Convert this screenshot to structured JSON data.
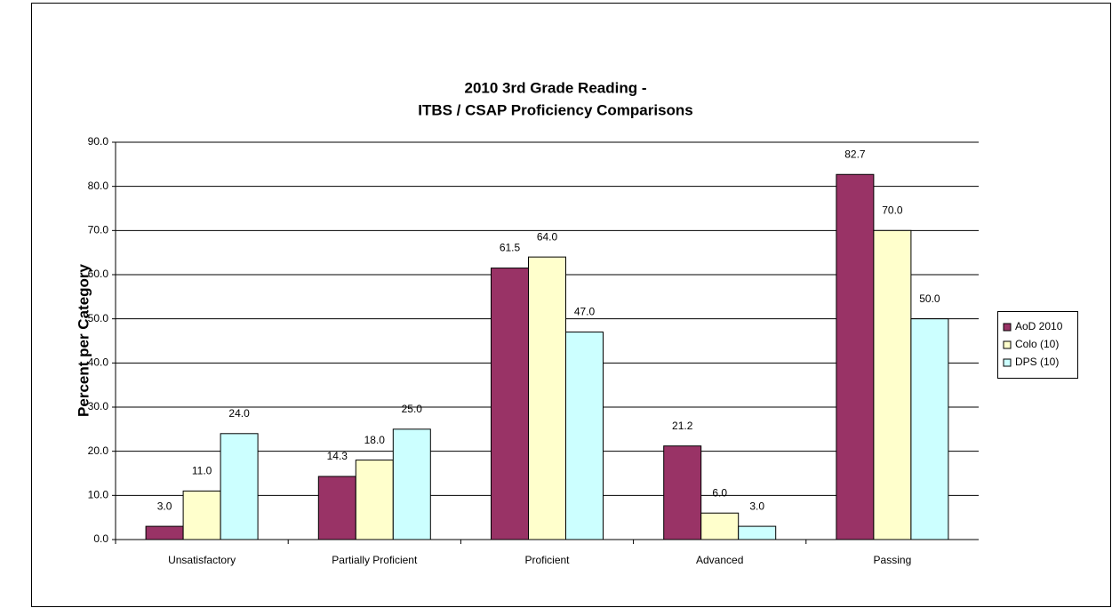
{
  "chart_data": {
    "type": "bar",
    "title": [
      "2010 3rd Grade Reading -",
      "ITBS / CSAP Proficiency Comparisons"
    ],
    "y_label": "Percent per Category",
    "categories": [
      "Unsatisfactory",
      "Partially Proficient",
      "Proficient",
      "Advanced",
      "Passing"
    ],
    "series": [
      {
        "name": "AoD 2010",
        "color": "#993366",
        "values": [
          3,
          14.3,
          61.5,
          21.2,
          82.7
        ],
        "value_labels": [
          "3.0",
          "14.3",
          "61.5",
          "21.2",
          "82.7"
        ]
      },
      {
        "name": "Colo (10)",
        "color": "#ffffcc",
        "values": [
          11,
          18,
          64,
          6,
          70
        ],
        "value_labels": [
          "11.0",
          "18.0",
          "64.0",
          "6.0",
          "70.0"
        ]
      },
      {
        "name": "DPS (10)",
        "color": "#ccffff",
        "values": [
          24,
          25,
          47,
          3,
          50
        ],
        "value_labels": [
          "24.0",
          "25.0",
          "47.0",
          "3.0",
          "50.0"
        ]
      }
    ],
    "ylim": [
      0,
      90
    ],
    "yticks": [
      {
        "value": 0,
        "label": "0.0"
      },
      {
        "value": 10,
        "label": "10.0"
      },
      {
        "value": 20,
        "label": "20.0"
      },
      {
        "value": 30,
        "label": "30.0"
      },
      {
        "value": 40,
        "label": "40.0"
      },
      {
        "value": 50,
        "label": "50.0"
      },
      {
        "value": 60,
        "label": "60.0"
      },
      {
        "value": 70,
        "label": "70.0"
      },
      {
        "value": 80,
        "label": "80.0"
      },
      {
        "value": 90,
        "label": "90.0"
      }
    ],
    "grid": true,
    "legend": "right"
  }
}
